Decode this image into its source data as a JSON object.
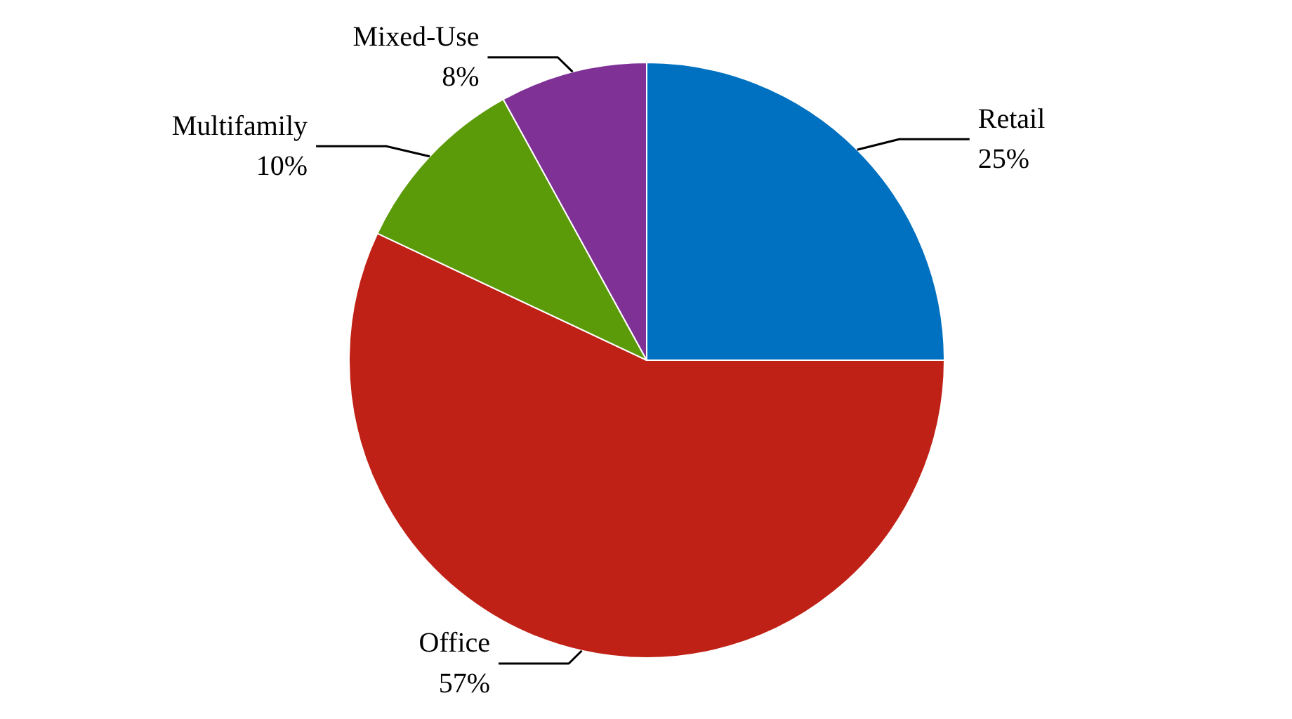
{
  "chart_data": {
    "type": "pie",
    "categories": [
      "Retail",
      "Office",
      "Multifamily",
      "Mixed-Use"
    ],
    "values": [
      25,
      57,
      10,
      8
    ],
    "colors": [
      "#0070c0",
      "#c02116",
      "#5b9a08",
      "#7f3196"
    ],
    "value_labels": [
      "25%",
      "57%",
      "10%",
      "8%"
    ]
  }
}
